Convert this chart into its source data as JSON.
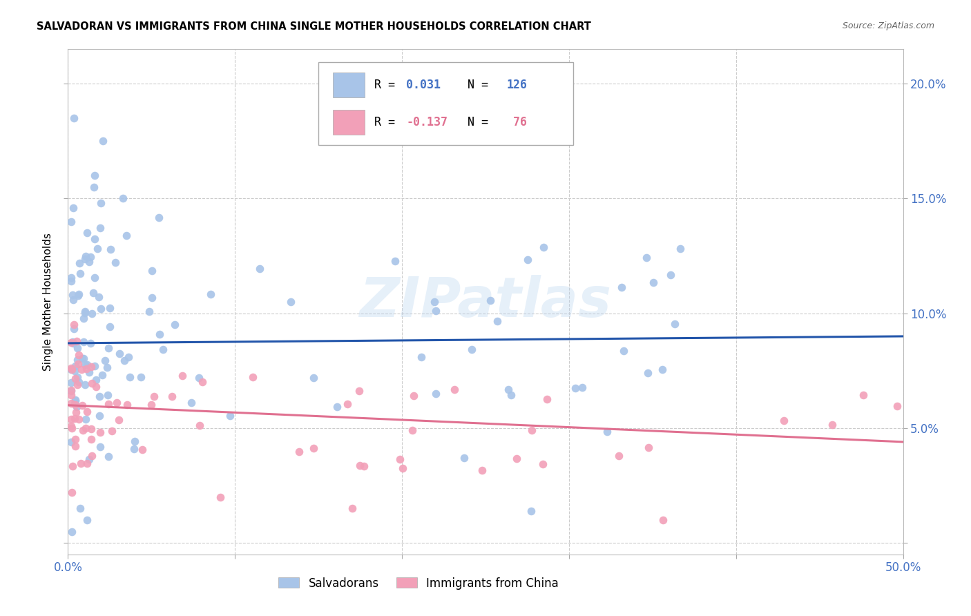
{
  "title": "SALVADORAN VS IMMIGRANTS FROM CHINA SINGLE MOTHER HOUSEHOLDS CORRELATION CHART",
  "source": "Source: ZipAtlas.com",
  "ylabel": "Single Mother Households",
  "xlim": [
    0.0,
    0.5
  ],
  "ylim": [
    -0.005,
    0.215
  ],
  "yticks": [
    0.0,
    0.05,
    0.1,
    0.15,
    0.2
  ],
  "xticks": [
    0.0,
    0.1,
    0.2,
    0.3,
    0.4,
    0.5
  ],
  "xtick_labels": [
    "0.0%",
    "",
    "",
    "",
    "",
    "50.0%"
  ],
  "ytick_labels": [
    "",
    "5.0%",
    "10.0%",
    "15.0%",
    "20.0%"
  ],
  "blue_color": "#a8c4e8",
  "blue_line_color": "#2255aa",
  "pink_color": "#f2a0b8",
  "pink_line_color": "#e07090",
  "watermark": "ZIPatlas",
  "axis_tick_color": "#4472c4",
  "sal_line_y0": 0.087,
  "sal_line_y1": 0.09,
  "chi_line_y0": 0.06,
  "chi_line_y1": 0.044
}
